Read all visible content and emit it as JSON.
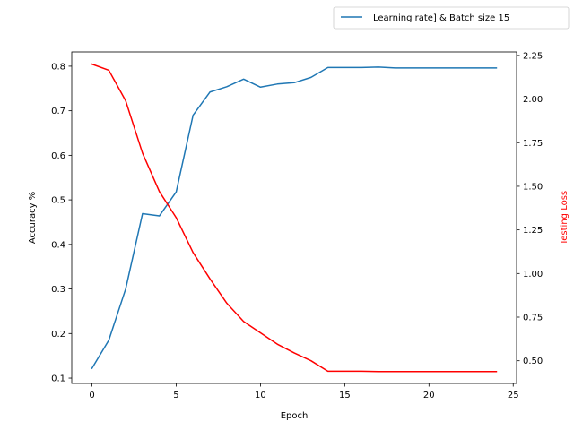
{
  "chart_data": {
    "type": "line",
    "xlabel": "Epoch",
    "ylabel_left": "Accuracy %",
    "ylabel_right": "Testing Loss",
    "xlim": [
      -1.2,
      25.2
    ],
    "ylim_left": [
      0.088,
      0.832
    ],
    "ylim_right": [
      0.37,
      2.27
    ],
    "x_ticks": [
      0,
      5,
      10,
      15,
      20,
      25
    ],
    "y_ticks_left": [
      0.1,
      0.2,
      0.3,
      0.4,
      0.5,
      0.6,
      0.7,
      0.8
    ],
    "y_ticks_right": [
      0.5,
      0.75,
      1.0,
      1.25,
      1.5,
      1.75,
      2.0,
      2.25
    ],
    "x_tick_labels": [
      "0",
      "5",
      "10",
      "15",
      "20",
      "25"
    ],
    "y_tick_labels_left": [
      "0.1",
      "0.2",
      "0.3",
      "0.4",
      "0.5",
      "0.6",
      "0.7",
      "0.8"
    ],
    "y_tick_labels_right": [
      "0.50",
      "0.75",
      "1.00",
      "1.25",
      "1.50",
      "1.75",
      "2.00",
      "2.25"
    ],
    "x": [
      0,
      1,
      2,
      3,
      4,
      5,
      6,
      7,
      8,
      9,
      10,
      11,
      12,
      13,
      14,
      15,
      16,
      17,
      18,
      19,
      20,
      21,
      22,
      23,
      24
    ],
    "series": [
      {
        "name": "Learning rate] & Batch size 15",
        "axis": "left",
        "color": "#1f77b4",
        "values": [
          0.122,
          0.185,
          0.3,
          0.469,
          0.464,
          0.518,
          0.69,
          0.742,
          0.754,
          0.771,
          0.753,
          0.76,
          0.763,
          0.775,
          0.797,
          0.797,
          0.797,
          0.798,
          0.796,
          0.796,
          0.796,
          0.796,
          0.796,
          0.796,
          0.796
        ]
      },
      {
        "axis": "right",
        "color": "#ff0000",
        "values": [
          2.2,
          2.165,
          1.99,
          1.69,
          1.47,
          1.32,
          1.12,
          0.97,
          0.83,
          0.725,
          0.66,
          0.595,
          0.545,
          0.5,
          0.44,
          0.44,
          0.44,
          0.438,
          0.438,
          0.438,
          0.438,
          0.438,
          0.438,
          0.438,
          0.438
        ]
      }
    ],
    "legend": {
      "entries": [
        "Learning rate] & Batch size 15"
      ],
      "placement": "top-right"
    },
    "grid": false
  }
}
